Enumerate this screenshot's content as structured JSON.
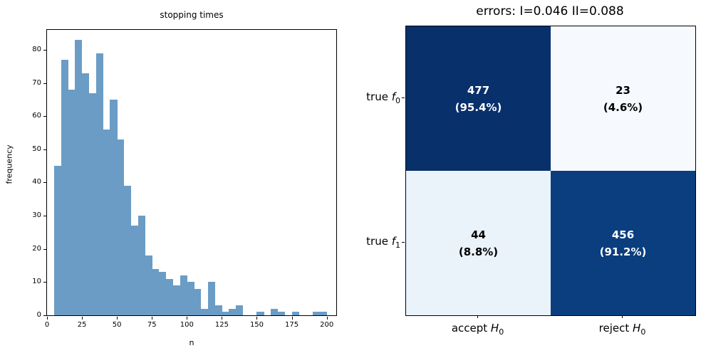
{
  "chart_data": [
    {
      "type": "bar",
      "title": "stopping times",
      "xlabel": "n",
      "ylabel": "frequency",
      "bin_start": 5,
      "bin_width": 5,
      "x": [
        5,
        10,
        15,
        20,
        25,
        30,
        35,
        40,
        45,
        50,
        55,
        60,
        65,
        70,
        75,
        80,
        85,
        90,
        95,
        100,
        105,
        110,
        115,
        120,
        125,
        130,
        135,
        140,
        145,
        150,
        155,
        160,
        165,
        170,
        175,
        180,
        185,
        190,
        195
      ],
      "values": [
        45,
        77,
        68,
        83,
        73,
        67,
        79,
        56,
        65,
        53,
        39,
        27,
        30,
        18,
        14,
        13,
        11,
        9,
        12,
        10,
        8,
        2,
        10,
        3,
        1,
        2,
        3,
        0,
        0,
        1,
        0,
        2,
        1,
        0,
        1,
        0,
        0,
        1,
        1
      ],
      "x_ticks": [
        0,
        25,
        50,
        75,
        100,
        125,
        150,
        175,
        200
      ],
      "y_ticks": [
        0,
        10,
        20,
        30,
        40,
        50,
        60,
        70,
        80
      ],
      "xlim": [
        0,
        206.8
      ],
      "ylim": [
        0,
        86
      ],
      "bar_color": "#6b9cc5",
      "grid": false,
      "legend": "none"
    },
    {
      "type": "heatmap",
      "title": "errors: I=0.046 II=0.088",
      "row_labels": [
        {
          "prefix": "true ",
          "var": "f",
          "sub": "0"
        },
        {
          "prefix": "true ",
          "var": "f",
          "sub": "1"
        }
      ],
      "col_labels": [
        {
          "prefix": "accept ",
          "var": "H",
          "sub": "0"
        },
        {
          "prefix": "reject ",
          "var": "H",
          "sub": "0"
        }
      ],
      "cells": [
        [
          {
            "count": "477",
            "pct": "(95.4%)",
            "bg": "#08306b",
            "fg": "#ffffff"
          },
          {
            "count": "23",
            "pct": "(4.6%)",
            "bg": "#f6fafe",
            "fg": "#000000"
          }
        ],
        [
          {
            "count": "44",
            "pct": "(8.8%)",
            "bg": "#eaf2fa",
            "fg": "#000000"
          },
          {
            "count": "456",
            "pct": "(91.2%)",
            "bg": "#0a3e7f",
            "fg": "#ffffff"
          }
        ]
      ]
    }
  ]
}
